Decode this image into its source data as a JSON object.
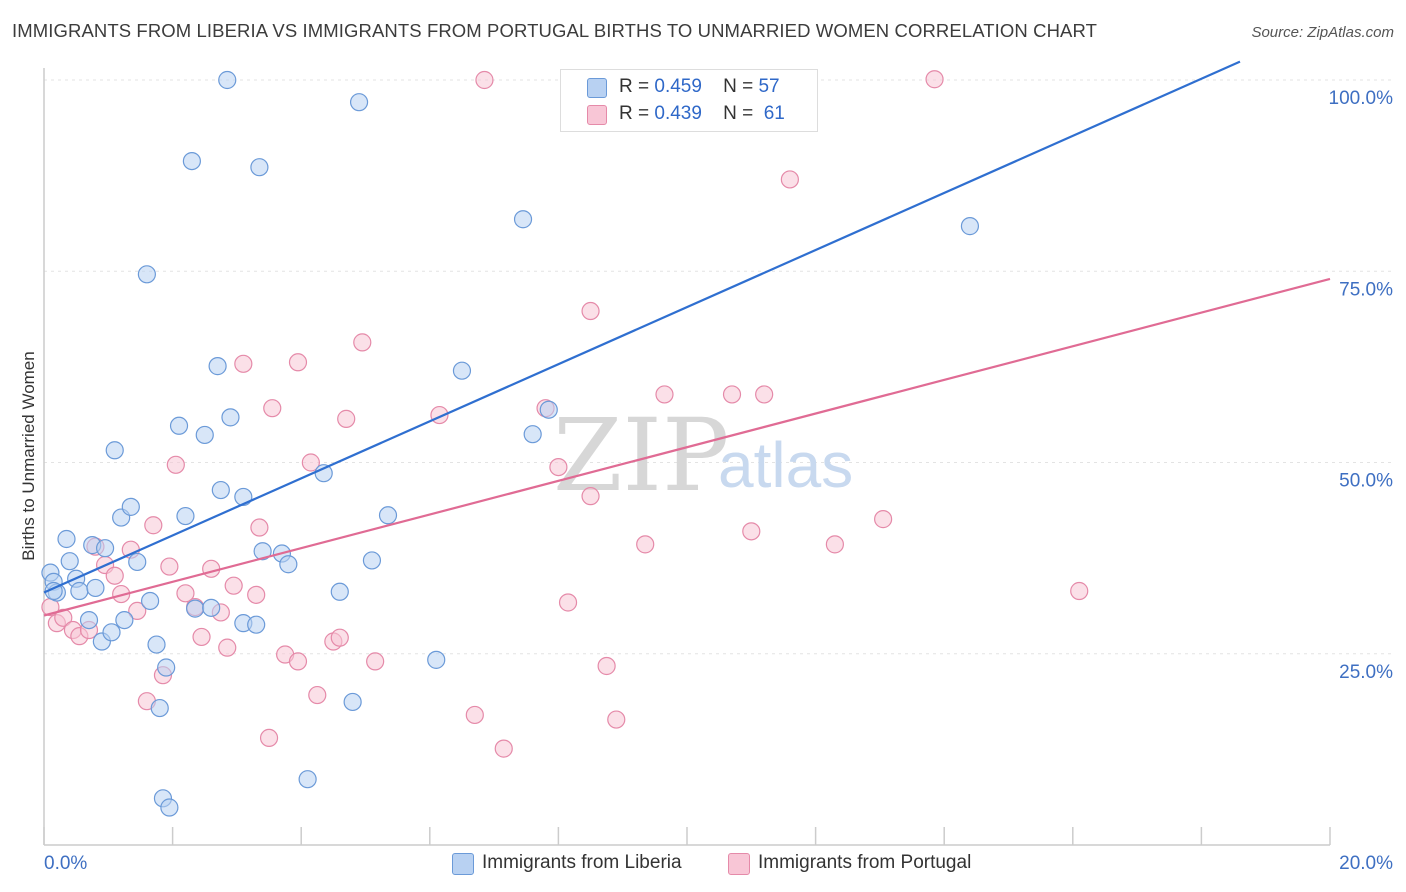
{
  "title": "IMMIGRANTS FROM LIBERIA VS IMMIGRANTS FROM PORTUGAL BIRTHS TO UNMARRIED WOMEN CORRELATION CHART",
  "source": "Source: ZipAtlas.com",
  "watermark": {
    "zip": "ZIP",
    "atlas": "atlas"
  },
  "colors": {
    "liberia_fill": "#b8d1f2",
    "liberia_stroke": "#6b9ad8",
    "liberia_line": "#2f6fd0",
    "portugal_fill": "#f8c6d6",
    "portugal_stroke": "#e58aa9",
    "portugal_line": "#e06b94",
    "tick_label": "#3e6fc2",
    "grid": "#e3e3e3"
  },
  "legend": {
    "rows": [
      {
        "r_label": "R =",
        "r_value": "0.459",
        "n_label": "N =",
        "n_value": "57"
      },
      {
        "r_label": "R =",
        "r_value": "0.439",
        "n_label": "N =",
        "n_value": "61"
      }
    ]
  },
  "chart_data": {
    "type": "scatter",
    "title": "IMMIGRANTS FROM LIBERIA VS IMMIGRANTS FROM PORTUGAL BIRTHS TO UNMARRIED WOMEN CORRELATION CHART",
    "xlabel": "",
    "ylabel": "Births to Unmarried Women",
    "xlim": [
      0,
      20
    ],
    "ylim": [
      0,
      100
    ],
    "x_tick_labels": [
      "0.0%",
      "20.0%"
    ],
    "y_tick_labels": [
      "100.0%",
      "75.0%",
      "50.0%",
      "25.0%"
    ],
    "y_ticks": [
      100,
      75,
      50,
      25
    ],
    "grid": true,
    "legend_position": "bottom",
    "series": [
      {
        "name": "Immigrants from Liberia",
        "trendline": {
          "x": [
            0,
            18.6
          ],
          "y": [
            33,
            102.4
          ]
        },
        "points": [
          [
            0.1,
            35.6
          ],
          [
            0.15,
            34.4
          ],
          [
            0.2,
            33.0
          ],
          [
            0.35,
            40.0
          ],
          [
            0.4,
            37.1
          ],
          [
            0.5,
            34.8
          ],
          [
            0.55,
            33.2
          ],
          [
            0.7,
            29.4
          ],
          [
            0.75,
            39.2
          ],
          [
            0.8,
            33.6
          ],
          [
            0.9,
            26.6
          ],
          [
            0.95,
            38.8
          ],
          [
            1.05,
            27.8
          ],
          [
            1.1,
            51.6
          ],
          [
            1.2,
            42.8
          ],
          [
            1.25,
            29.4
          ],
          [
            1.35,
            44.2
          ],
          [
            1.45,
            37.0
          ],
          [
            1.6,
            74.6
          ],
          [
            1.65,
            31.9
          ],
          [
            1.75,
            26.2
          ],
          [
            1.8,
            17.9
          ],
          [
            1.85,
            6.1
          ],
          [
            1.9,
            23.2
          ],
          [
            1.95,
            4.9
          ],
          [
            2.1,
            54.8
          ],
          [
            2.2,
            43.0
          ],
          [
            2.3,
            89.4
          ],
          [
            2.35,
            30.9
          ],
          [
            2.5,
            53.6
          ],
          [
            2.6,
            31.0
          ],
          [
            2.7,
            62.6
          ],
          [
            2.75,
            46.4
          ],
          [
            2.85,
            100.0
          ],
          [
            2.9,
            55.9
          ],
          [
            3.1,
            45.5
          ],
          [
            3.1,
            29.0
          ],
          [
            3.3,
            28.8
          ],
          [
            3.35,
            88.6
          ],
          [
            3.4,
            38.4
          ],
          [
            3.7,
            38.1
          ],
          [
            3.8,
            36.7
          ],
          [
            4.1,
            8.6
          ],
          [
            4.35,
            48.6
          ],
          [
            4.6,
            33.1
          ],
          [
            4.8,
            18.7
          ],
          [
            4.9,
            97.1
          ],
          [
            5.1,
            37.2
          ],
          [
            5.35,
            43.1
          ],
          [
            6.1,
            24.2
          ],
          [
            6.5,
            62.0
          ],
          [
            7.45,
            81.8
          ],
          [
            7.6,
            53.7
          ],
          [
            7.85,
            56.9
          ],
          [
            11.2,
            100.1
          ],
          [
            14.4,
            80.9
          ],
          [
            0.15,
            33.2
          ]
        ]
      },
      {
        "name": "Immigrants from Portugal",
        "trendline": {
          "x": [
            0,
            20
          ],
          "y": [
            30,
            74
          ]
        },
        "points": [
          [
            0.1,
            31.1
          ],
          [
            0.2,
            29.0
          ],
          [
            0.3,
            29.7
          ],
          [
            0.45,
            28.1
          ],
          [
            0.55,
            27.3
          ],
          [
            0.7,
            28.1
          ],
          [
            0.8,
            39.0
          ],
          [
            0.95,
            36.6
          ],
          [
            1.1,
            35.2
          ],
          [
            1.2,
            32.8
          ],
          [
            1.35,
            38.6
          ],
          [
            1.45,
            30.6
          ],
          [
            1.6,
            18.8
          ],
          [
            1.7,
            41.8
          ],
          [
            1.85,
            22.2
          ],
          [
            1.95,
            36.4
          ],
          [
            2.05,
            49.7
          ],
          [
            2.2,
            32.9
          ],
          [
            2.35,
            31.1
          ],
          [
            2.45,
            27.2
          ],
          [
            2.6,
            36.1
          ],
          [
            2.75,
            30.4
          ],
          [
            2.85,
            25.8
          ],
          [
            2.95,
            33.9
          ],
          [
            3.1,
            62.9
          ],
          [
            3.3,
            32.7
          ],
          [
            3.35,
            41.5
          ],
          [
            3.5,
            14.0
          ],
          [
            3.55,
            57.1
          ],
          [
            3.75,
            24.9
          ],
          [
            3.95,
            63.1
          ],
          [
            3.95,
            24.0
          ],
          [
            4.15,
            50.0
          ],
          [
            4.25,
            19.6
          ],
          [
            4.5,
            26.6
          ],
          [
            4.6,
            27.1
          ],
          [
            4.7,
            55.7
          ],
          [
            4.95,
            65.7
          ],
          [
            5.15,
            24.0
          ],
          [
            6.15,
            56.2
          ],
          [
            6.7,
            17.0
          ],
          [
            6.85,
            100.0
          ],
          [
            7.15,
            12.6
          ],
          [
            7.8,
            57.1
          ],
          [
            8.0,
            49.4
          ],
          [
            8.15,
            31.7
          ],
          [
            8.5,
            45.6
          ],
          [
            8.5,
            69.8
          ],
          [
            8.75,
            23.4
          ],
          [
            8.9,
            16.4
          ],
          [
            9.35,
            39.3
          ],
          [
            9.65,
            58.9
          ],
          [
            10.7,
            58.9
          ],
          [
            11.0,
            41.0
          ],
          [
            11.2,
            58.9
          ],
          [
            11.5,
            100.1
          ],
          [
            11.6,
            87.0
          ],
          [
            12.3,
            39.3
          ],
          [
            13.05,
            42.6
          ],
          [
            13.85,
            100.1
          ],
          [
            16.1,
            33.2
          ]
        ]
      }
    ]
  }
}
